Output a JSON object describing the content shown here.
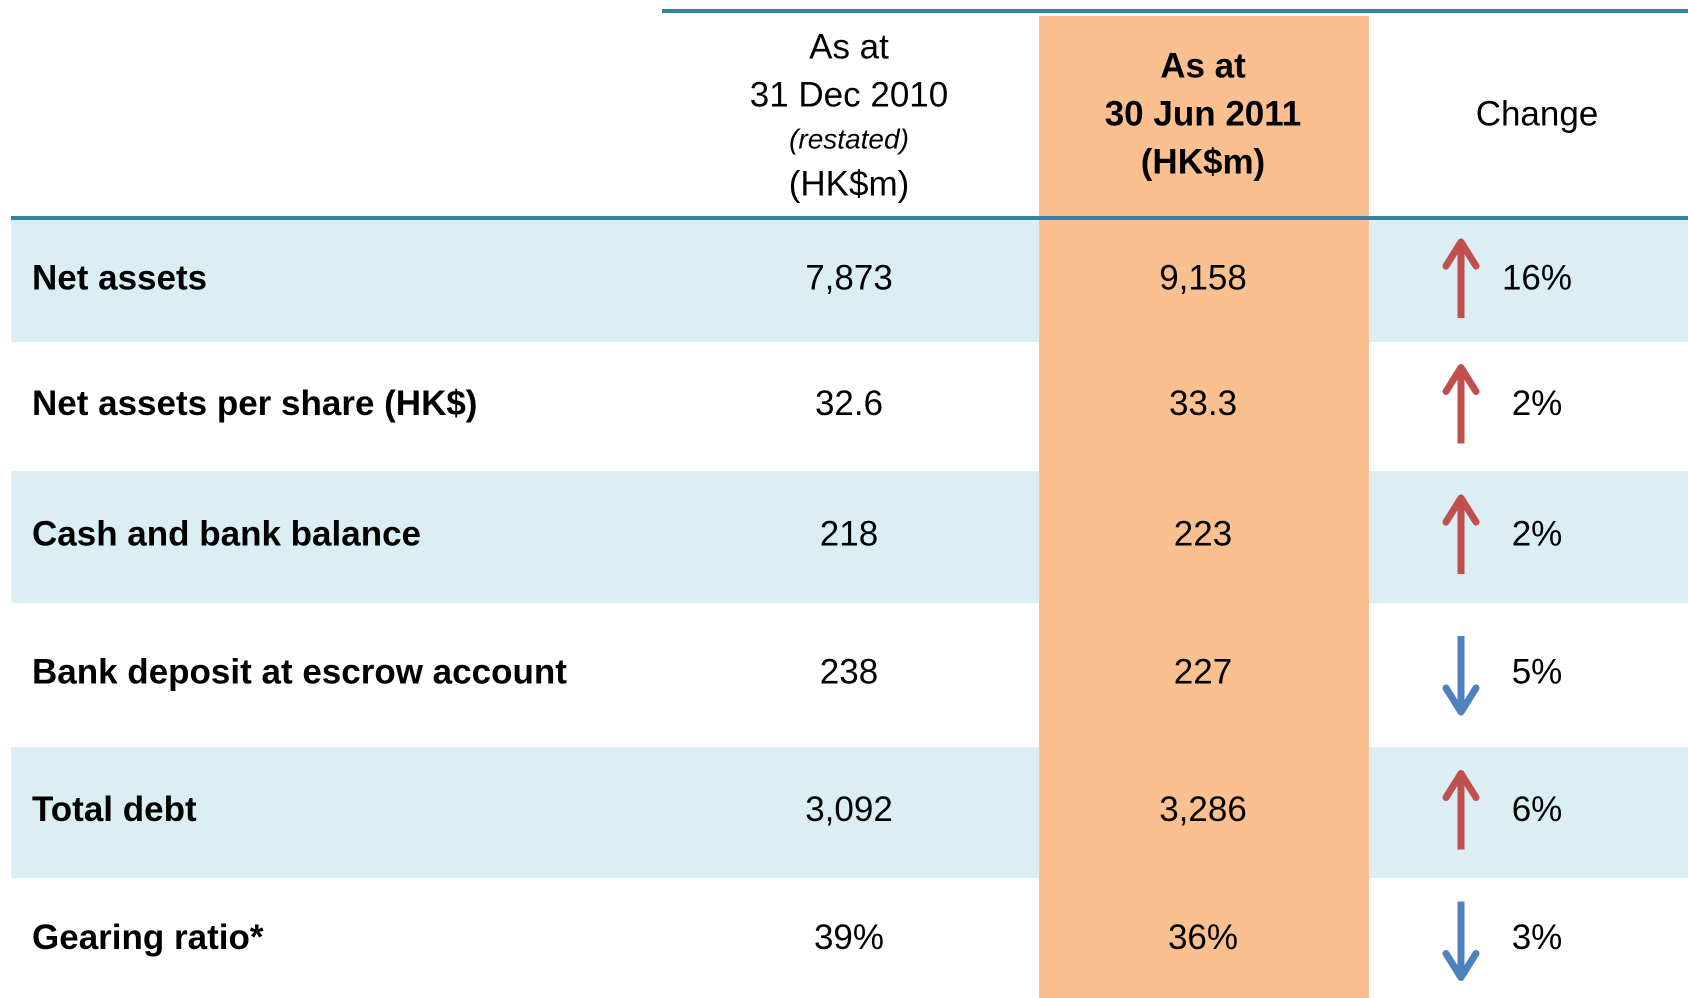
{
  "table": {
    "header": {
      "col1": [
        "As at",
        "31 Dec 2010",
        "(restated)",
        "(HK$m)"
      ],
      "col2": [
        "As at",
        "30 Jun 2011",
        "(HK$m)"
      ],
      "col3": "Change"
    },
    "rows": [
      {
        "label": "Net assets",
        "values": [
          "7,873",
          "9,158"
        ],
        "change": "16%",
        "direction": "up"
      },
      {
        "label": "Net assets per share (HK$)",
        "values": [
          "32.6",
          "33.3"
        ],
        "change": "2%",
        "direction": "up"
      },
      {
        "label": "Cash and bank balance",
        "values": [
          "218",
          "223"
        ],
        "change": "2%",
        "direction": "up"
      },
      {
        "label": "Bank deposit at escrow account",
        "values": [
          "238",
          "227"
        ],
        "change": "5%",
        "direction": "down"
      },
      {
        "label": "Total debt",
        "values": [
          "3,092",
          "3,286"
        ],
        "change": "6%",
        "direction": "up"
      },
      {
        "label": "Gearing ratio*",
        "values": [
          "39%",
          "36%"
        ],
        "change": "3%",
        "direction": "down"
      }
    ]
  }
}
